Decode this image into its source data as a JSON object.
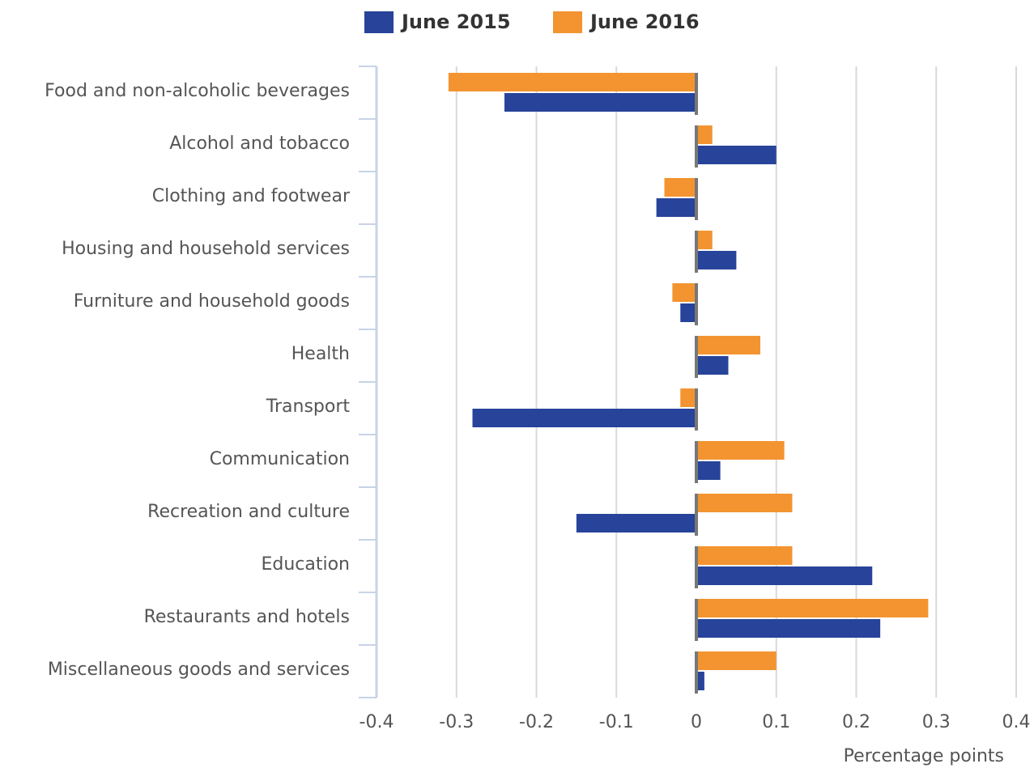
{
  "chart_data": {
    "type": "hbar",
    "categories": [
      "Food and non-alcoholic beverages",
      "Alcohol and tobacco",
      "Clothing and footwear",
      "Housing and household services",
      "Furniture and household goods",
      "Health",
      "Transport",
      "Communication",
      "Recreation and culture",
      "Education",
      "Restaurants and hotels",
      "Miscellaneous goods and services"
    ],
    "series": [
      {
        "name": "June 2015",
        "color": "#27449a",
        "values": [
          -0.24,
          0.1,
          -0.05,
          0.05,
          -0.02,
          0.04,
          -0.28,
          0.03,
          -0.15,
          0.22,
          0.23,
          0.01
        ]
      },
      {
        "name": "June 2016",
        "color": "#f39431",
        "values": [
          -0.31,
          0.02,
          -0.04,
          0.02,
          -0.03,
          0.08,
          -0.02,
          0.11,
          0.12,
          0.12,
          0.29,
          0.1
        ]
      }
    ],
    "xlabel": "Percentage points",
    "xlim": [
      -0.4,
      0.4
    ],
    "xticks": [
      -0.4,
      -0.3,
      -0.2,
      -0.1,
      0,
      0.1,
      0.2,
      0.3,
      0.4
    ],
    "grid": true,
    "legend": "top"
  }
}
